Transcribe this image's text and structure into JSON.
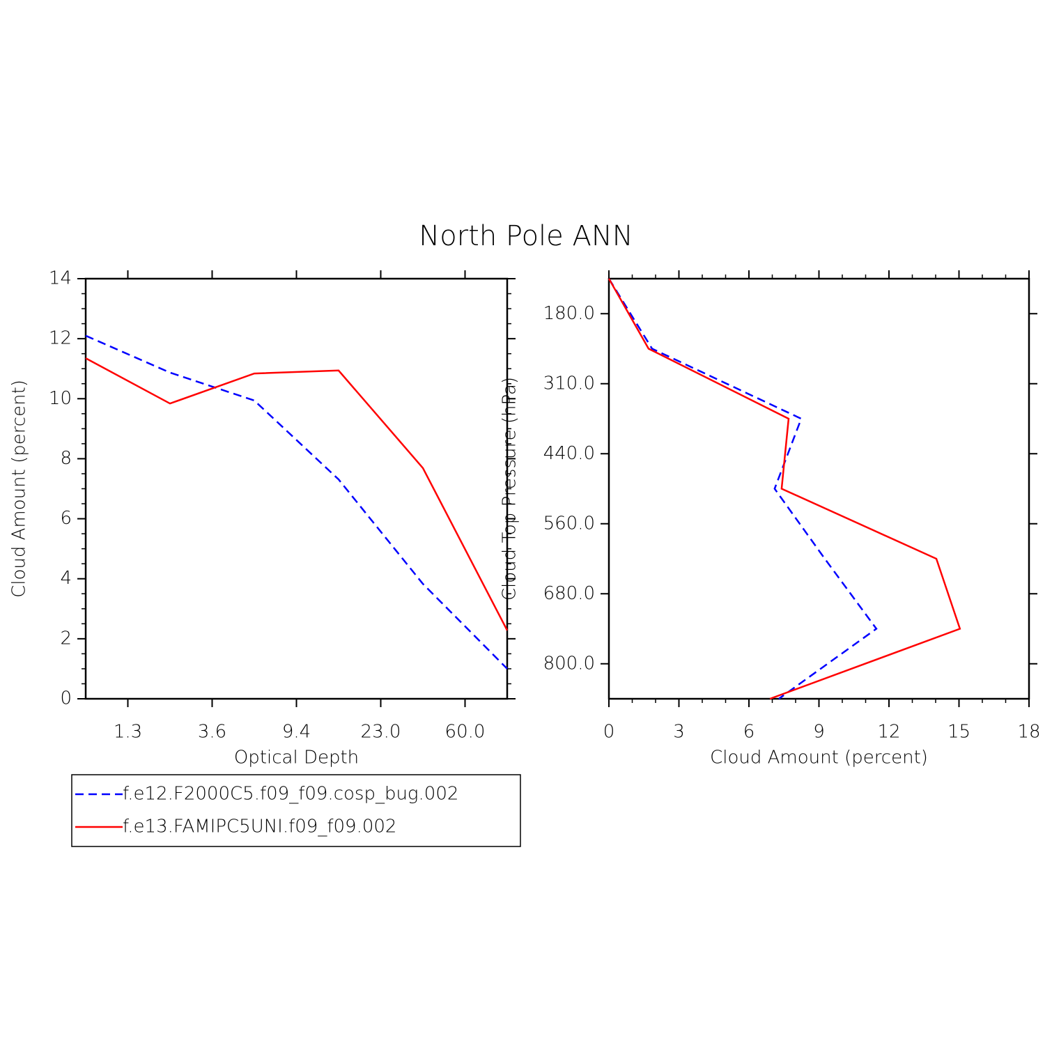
{
  "title": "North Pole ANN",
  "legend_position": "below-left",
  "chart_data": [
    {
      "type": "line",
      "xlabel": "Optical Depth",
      "ylabel": "Cloud Amount (percent)",
      "x": [
        0,
        1,
        2,
        3,
        4,
        5
      ],
      "xlim": [
        0,
        5
      ],
      "xticks": [
        {
          "value": 0.5,
          "label": "1.3"
        },
        {
          "value": 1.5,
          "label": "3.6"
        },
        {
          "value": 2.5,
          "label": "9.4"
        },
        {
          "value": 3.5,
          "label": "23.0"
        },
        {
          "value": 4.5,
          "label": "60.0"
        }
      ],
      "ylim": [
        0,
        14
      ],
      "yticks": [
        0,
        2,
        4,
        6,
        8,
        10,
        12,
        14
      ],
      "series": [
        {
          "name": "f.e12.F2000C5.f09_f09.cosp_bug.002",
          "color": "#0000ff",
          "line_style": "dashed",
          "values": [
            12.1,
            10.87,
            9.94,
            7.31,
            3.83,
            1.0
          ]
        },
        {
          "name": "f.e13.FAMIPC5UNI.f09_f09.002",
          "color": "#ff0000",
          "line_style": "solid",
          "values": [
            11.35,
            9.84,
            10.84,
            10.94,
            7.69,
            2.28
          ]
        }
      ]
    },
    {
      "type": "line",
      "orientation": "horizontal",
      "xlabel": "Cloud Amount (percent)",
      "ylabel": "Cloud Top Pressure (hPa)",
      "y": [
        0,
        1,
        2,
        3,
        4,
        5,
        6
      ],
      "ylim": [
        6,
        0
      ],
      "yticks": [
        {
          "value": 0.5,
          "label": "180.0"
        },
        {
          "value": 1.5,
          "label": "310.0"
        },
        {
          "value": 2.5,
          "label": "440.0"
        },
        {
          "value": 3.5,
          "label": "560.0"
        },
        {
          "value": 4.5,
          "label": "680.0"
        },
        {
          "value": 5.5,
          "label": "800.0"
        }
      ],
      "xlim": [
        0,
        18
      ],
      "xticks": [
        0,
        3,
        6,
        9,
        12,
        15,
        18
      ],
      "series": [
        {
          "color": "#0000ff",
          "line_style": "dashed",
          "values": [
            0,
            1.85,
            8.24,
            7.1,
            9.25,
            11.46,
            7.28
          ]
        },
        {
          "color": "#ff0000",
          "line_style": "solid",
          "values": [
            0,
            1.7,
            7.7,
            7.4,
            14.03,
            15.04,
            6.9
          ]
        }
      ]
    }
  ]
}
